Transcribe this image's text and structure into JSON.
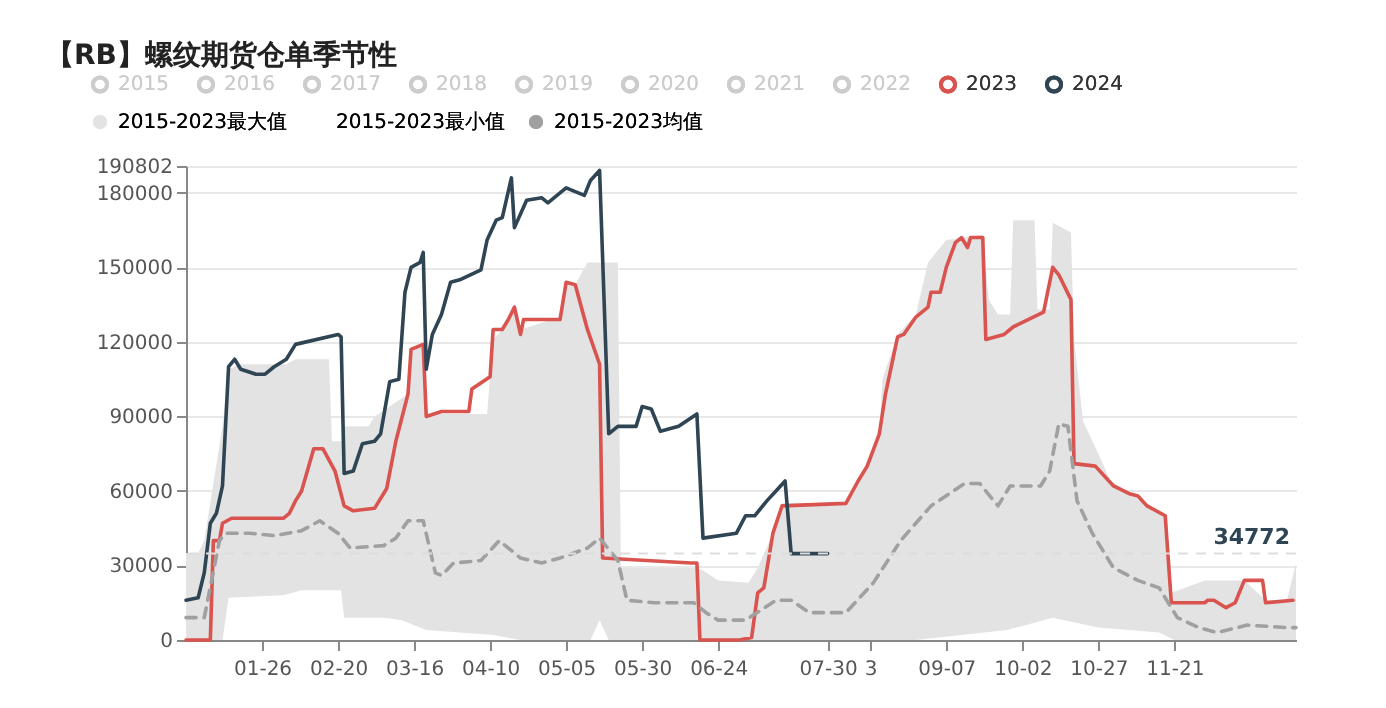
{
  "chart_data": {
    "type": "line",
    "title": "【RB】螺纹期货仓单季节性",
    "xlim": [
      "--01-01",
      "--12-31"
    ],
    "xticks": [
      {
        "value": "--01-26",
        "label": "01-26"
      },
      {
        "value": "--02-20",
        "label": "02-20"
      },
      {
        "value": "--03-16",
        "label": "03-16"
      },
      {
        "value": "--04-10",
        "label": "04-10"
      },
      {
        "value": "--05-05",
        "label": "05-05"
      },
      {
        "value": "--05-30",
        "label": "05-30"
      },
      {
        "value": "--06-24",
        "label": "06-24"
      },
      {
        "value": "--07-30",
        "label": "07-30"
      },
      {
        "value": "--08-13",
        "label": "3"
      },
      {
        "value": "--09-07",
        "label": "09-07"
      },
      {
        "value": "--10-02",
        "label": "10-02"
      },
      {
        "value": "--10-27",
        "label": "10-27"
      },
      {
        "value": "--11-21",
        "label": "11-21"
      }
    ],
    "ylim": [
      0,
      190802
    ],
    "yticks": [
      0,
      30000,
      60000,
      90000,
      120000,
      150000,
      180000,
      190802
    ],
    "grid": "y",
    "legend": "top",
    "ref_lines": [
      {
        "axis": "y",
        "value": 34772,
        "label": "34772",
        "color": "#dddddd",
        "line_style": "dashed"
      }
    ],
    "series": [
      {
        "name": "2015",
        "color": "#cccccc"
      },
      {
        "name": "2016",
        "color": "#cccccc"
      },
      {
        "name": "2017",
        "color": "#cccccc"
      },
      {
        "name": "2018",
        "color": "#cccccc"
      },
      {
        "name": "2019",
        "color": "#cccccc"
      },
      {
        "name": "2020",
        "color": "#cccccc"
      },
      {
        "name": "2021",
        "color": "#cccccc"
      },
      {
        "name": "2022",
        "color": "#cccccc"
      },
      {
        "name": "2023",
        "color": "#d9534f",
        "x": [
          "--01-01",
          "--01-09",
          "--01-10",
          "--01-12",
          "--01-13",
          "--01-16",
          "--02-02",
          "--02-04",
          "--02-06",
          "--02-08",
          "--02-12",
          "--02-15",
          "--02-19",
          "--02-22",
          "--02-25",
          "--03-03",
          "--03-07",
          "--03-10",
          "--03-14",
          "--03-15",
          "--03-19",
          "--03-20",
          "--03-25",
          "--04-03",
          "--04-04",
          "--04-10",
          "--04-11",
          "--04-14",
          "--04-16",
          "--04-18",
          "--04-20",
          "--04-21",
          "--05-03",
          "--05-05",
          "--05-08",
          "--05-12",
          "--05-16",
          "--05-17",
          "--06-15",
          "--06-17",
          "--06-18",
          "--07-01",
          "--07-05",
          "--07-07",
          "--07-09",
          "--07-12",
          "--07-15",
          "--08-05",
          "--08-09",
          "--08-12",
          "--08-16",
          "--08-18",
          "--08-22",
          "--08-24",
          "--08-28",
          "--09-01",
          "--09-02",
          "--09-05",
          "--09-07",
          "--09-10",
          "--09-12",
          "--09-14",
          "--09-15",
          "--09-19",
          "--09-20",
          "--09-26",
          "--09-29",
          "--10-09",
          "--10-12",
          "--10-14",
          "--10-18",
          "--10-19",
          "--10-26",
          "--11-01",
          "--11-06",
          "--11-09",
          "--11-12",
          "--11-18",
          "--11-20",
          "--12-01",
          "--12-02",
          "--12-04",
          "--12-08",
          "--12-11",
          "--12-14",
          "--12-20",
          "--12-21",
          "--12-30"
        ],
        "values": [
          0,
          0,
          40000,
          40000,
          47000,
          49000,
          49000,
          51000,
          56000,
          60000,
          77000,
          77000,
          68000,
          54000,
          52000,
          53000,
          61000,
          80000,
          99000,
          117000,
          119000,
          90000,
          92000,
          92000,
          101000,
          106000,
          125000,
          125000,
          129000,
          134000,
          123000,
          129000,
          129000,
          144000,
          143000,
          125000,
          111000,
          33000,
          31000,
          31000,
          0,
          0,
          1000,
          19000,
          21000,
          43000,
          54000,
          55000,
          64000,
          70000,
          83000,
          99000,
          122000,
          123000,
          130000,
          134000,
          140000,
          140000,
          150000,
          160000,
          162000,
          158000,
          162000,
          162000,
          121000,
          123000,
          126000,
          132000,
          150000,
          147000,
          137000,
          71000,
          70000,
          62000,
          59000,
          58000,
          54000,
          50000,
          15000,
          15000,
          16000,
          16000,
          13000,
          15000,
          24000,
          24000,
          15000,
          16000
        ]
      },
      {
        "name": "2024",
        "color": "#2f4554",
        "x": [
          "--01-01",
          "--01-05",
          "--01-07",
          "--01-09",
          "--01-11",
          "--01-13",
          "--01-15",
          "--01-17",
          "--01-19",
          "--01-24",
          "--01-27",
          "--01-30",
          "--02-03",
          "--02-06",
          "--02-20",
          "--02-21",
          "--02-22",
          "--02-25",
          "--02-28",
          "--03-03",
          "--03-05",
          "--03-08",
          "--03-11",
          "--03-13",
          "--03-15",
          "--03-18",
          "--03-19",
          "--03-20",
          "--03-22",
          "--03-25",
          "--03-28",
          "--03-31",
          "--04-07",
          "--04-09",
          "--04-12",
          "--04-14",
          "--04-17",
          "--04-18",
          "--04-22",
          "--04-27",
          "--04-29",
          "--05-05",
          "--05-11",
          "--05-13",
          "--05-16",
          "--05-19",
          "--05-22",
          "--05-28",
          "--05-30",
          "--06-02",
          "--06-05",
          "--06-11",
          "--06-17",
          "--06-19",
          "--06-30",
          "--07-03",
          "--07-06",
          "--07-10",
          "--07-13",
          "--07-16",
          "--07-18",
          "--07-30"
        ],
        "values": [
          16000,
          17000,
          27000,
          47000,
          51000,
          62000,
          110000,
          113000,
          109000,
          107000,
          107000,
          110000,
          113000,
          119000,
          123000,
          122000,
          67000,
          68000,
          79000,
          80000,
          83000,
          104000,
          105000,
          140000,
          150000,
          152000,
          156000,
          109000,
          123000,
          131000,
          144000,
          145000,
          149000,
          161000,
          169000,
          170000,
          186000,
          166000,
          177000,
          178000,
          176000,
          182000,
          179000,
          185000,
          189000,
          83000,
          86000,
          86000,
          94000,
          93000,
          84000,
          86000,
          91000,
          41000,
          43000,
          50000,
          50000,
          56000,
          60000,
          64000,
          34772,
          34772
        ]
      },
      {
        "name": "2015-2023最大值",
        "type": "area",
        "color": "#e3e3e3",
        "x": [
          "--01-01",
          "--01-05",
          "--01-07",
          "--01-13",
          "--01-15",
          "--01-19",
          "--02-03",
          "--02-06",
          "--02-17",
          "--02-18",
          "--02-21",
          "--02-22",
          "--03-01",
          "--03-03",
          "--03-14",
          "--03-15",
          "--03-19",
          "--03-20",
          "--04-09",
          "--04-11",
          "--04-14",
          "--04-16",
          "--04-18",
          "--04-20",
          "--05-03",
          "--05-05",
          "--05-08",
          "--05-12",
          "--05-22",
          "--05-23",
          "--06-17",
          "--06-19",
          "--06-24",
          "--07-04",
          "--07-07",
          "--07-12",
          "--07-15",
          "--08-05",
          "--08-09",
          "--08-12",
          "--08-16",
          "--08-17",
          "--08-22",
          "--08-28",
          "--09-01",
          "--09-07",
          "--09-19",
          "--09-21",
          "--09-24",
          "--09-28",
          "--09-29",
          "--10-06",
          "--10-07",
          "--10-11",
          "--10-12",
          "--10-18",
          "--10-19",
          "--10-22",
          "--10-27",
          "--10-31",
          "--11-10",
          "--11-18",
          "--11-20",
          "--12-01",
          "--12-14",
          "--12-21",
          "--12-28",
          "--12-31"
        ],
        "values": [
          35000,
          35000,
          40000,
          86000,
          109000,
          111000,
          111000,
          113000,
          113000,
          80000,
          80000,
          86000,
          86000,
          90000,
          99000,
          117000,
          119000,
          91000,
          91000,
          121000,
          125000,
          129000,
          134000,
          125000,
          130000,
          144000,
          143000,
          152000,
          152000,
          29000,
          29000,
          28000,
          24000,
          23000,
          29000,
          43000,
          55000,
          55000,
          64000,
          70000,
          83000,
          105000,
          123000,
          131000,
          152000,
          161000,
          163000,
          137000,
          131000,
          131000,
          169000,
          169000,
          133000,
          133000,
          168000,
          164000,
          121000,
          88000,
          75000,
          64000,
          56000,
          50000,
          19000,
          24000,
          24000,
          16000,
          16000,
          31000
        ]
      },
      {
        "name": "2015-2023最小值",
        "type": "area",
        "color": "#ffffff",
        "x": [
          "--01-01",
          "--01-13",
          "--01-15",
          "--02-02",
          "--02-08",
          "--02-21",
          "--02-22",
          "--03-06",
          "--03-12",
          "--03-20",
          "--04-11",
          "--04-20",
          "--05-13",
          "--05-16",
          "--05-19",
          "--08-28",
          "--09-12",
          "--09-27",
          "--10-12",
          "--10-27",
          "--11-16",
          "--11-21",
          "--12-31"
        ],
        "values": [
          0,
          0,
          17000,
          18000,
          20000,
          20000,
          9000,
          9000,
          8000,
          4000,
          2000,
          0,
          0,
          8000,
          0,
          0,
          2000,
          4000,
          9000,
          5000,
          3000,
          0,
          0
        ]
      },
      {
        "name": "2015-2023均值",
        "type": "line",
        "line_style": "dashed",
        "color": "#a0a0a0",
        "x": [
          "--01-01",
          "--01-07",
          "--01-12",
          "--01-14",
          "--01-22",
          "--01-30",
          "--02-08",
          "--02-14",
          "--02-20",
          "--02-24",
          "--03-06",
          "--03-10",
          "--03-14",
          "--03-19",
          "--03-23",
          "--03-25",
          "--03-29",
          "--04-07",
          "--04-13",
          "--04-16",
          "--04-20",
          "--04-27",
          "--05-03",
          "--05-12",
          "--05-16",
          "--05-22",
          "--05-25",
          "--06-03",
          "--06-16",
          "--06-20",
          "--06-24",
          "--07-03",
          "--07-13",
          "--07-18",
          "--07-24",
          "--08-05",
          "--08-14",
          "--08-23",
          "--09-02",
          "--09-13",
          "--09-18",
          "--09-24",
          "--09-28",
          "--10-08",
          "--10-11",
          "--10-14",
          "--10-17",
          "--10-20",
          "--10-25",
          "--11-01",
          "--11-09",
          "--11-16",
          "--11-22",
          "--11-29",
          "--12-05",
          "--12-15",
          "--12-28",
          "--12-31"
        ],
        "values": [
          9000,
          9000,
          40000,
          43000,
          43000,
          42000,
          44000,
          48000,
          43000,
          37000,
          38000,
          41000,
          48000,
          48000,
          27000,
          26000,
          31000,
          32000,
          40000,
          37000,
          33000,
          31000,
          33000,
          37000,
          41000,
          32000,
          16000,
          15000,
          15000,
          11000,
          8000,
          8000,
          16000,
          16000,
          11000,
          11000,
          23000,
          40000,
          54000,
          63000,
          63000,
          54000,
          62000,
          62000,
          68000,
          87000,
          86000,
          56000,
          43000,
          29000,
          24000,
          21000,
          9000,
          5000,
          3000,
          6000,
          5000,
          5000
        ]
      }
    ]
  }
}
